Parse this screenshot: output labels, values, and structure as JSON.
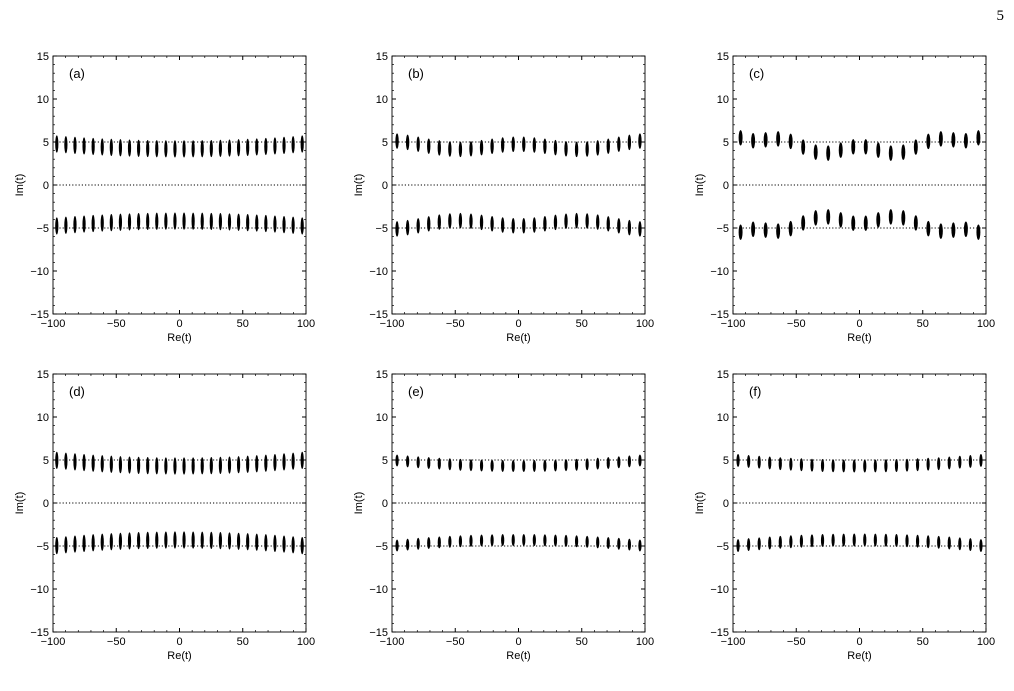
{
  "page": {
    "page_number": "5"
  },
  "chart_data": [
    {
      "type": "scatter",
      "panel_label": "(a)",
      "xlabel": "Re(t)",
      "ylabel": "Im(t)",
      "xlim": [
        -100,
        100
      ],
      "ylim": [
        -15,
        15
      ],
      "x_ticks": [
        -100,
        -50,
        0,
        50,
        100
      ],
      "y_ticks": [
        -15,
        -10,
        -5,
        0,
        5,
        10,
        15
      ],
      "reference_lines": [
        -5,
        0,
        5
      ],
      "clusters": {
        "count": 28,
        "x_start": -97,
        "x_end": 97,
        "center_y_edge": 4.8,
        "center_y_middle": 4.2,
        "half_height": 1.0,
        "width": 2.0
      }
    },
    {
      "type": "scatter",
      "panel_label": "(b)",
      "xlabel": "Re(t)",
      "ylabel": "Im(t)",
      "xlim": [
        -100,
        100
      ],
      "ylim": [
        -15,
        15
      ],
      "x_ticks": [
        -100,
        -50,
        0,
        50,
        100
      ],
      "y_ticks": [
        -15,
        -10,
        -5,
        0,
        5,
        10,
        15
      ],
      "reference_lines": [
        -5,
        0,
        5
      ],
      "clusters": {
        "count": 24,
        "x_start": -96,
        "x_end": 96,
        "center_y_edge": 4.8,
        "center_y_middle": 4.4,
        "wave_amplitude": 0.35,
        "wave_period": 100,
        "half_height": 0.9,
        "width": 2.2
      }
    },
    {
      "type": "scatter",
      "panel_label": "(c)",
      "xlabel": "Re(t)",
      "ylabel": "Im(t)",
      "xlim": [
        -100,
        100
      ],
      "ylim": [
        -15,
        15
      ],
      "x_ticks": [
        -100,
        -50,
        0,
        50,
        100
      ],
      "y_ticks": [
        -15,
        -10,
        -5,
        0,
        5,
        10,
        15
      ],
      "reference_lines": [
        -5,
        0,
        5
      ],
      "clusters": {
        "count": 20,
        "x_start": -94,
        "x_end": 94,
        "center_y_edge": 6.2,
        "center_y_middle": 4.0,
        "wave_amplitude": 0.5,
        "wave_period": 60,
        "half_height": 0.9,
        "width": 2.6
      }
    },
    {
      "type": "scatter",
      "panel_label": "(d)",
      "xlabel": "Re(t)",
      "ylabel": "Im(t)",
      "xlim": [
        -100,
        100
      ],
      "ylim": [
        -15,
        15
      ],
      "x_ticks": [
        -100,
        -50,
        0,
        50,
        100
      ],
      "y_ticks": [
        -15,
        -10,
        -5,
        0,
        5,
        10,
        15
      ],
      "reference_lines": [
        -5,
        0,
        5
      ],
      "clusters": {
        "count": 28,
        "x_start": -97,
        "x_end": 97,
        "center_y_edge": 5.0,
        "center_y_middle": 4.3,
        "half_height": 1.0,
        "width": 2.0
      }
    },
    {
      "type": "scatter",
      "panel_label": "(e)",
      "xlabel": "Re(t)",
      "ylabel": "Im(t)",
      "xlim": [
        -100,
        100
      ],
      "ylim": [
        -15,
        15
      ],
      "x_ticks": [
        -100,
        -50,
        0,
        50,
        100
      ],
      "y_ticks": [
        -15,
        -10,
        -5,
        0,
        5,
        10,
        15
      ],
      "reference_lines": [
        -5,
        0,
        5
      ],
      "clusters": {
        "count": 24,
        "x_start": -96,
        "x_end": 96,
        "center_y_edge": 5.0,
        "center_y_middle": 4.3,
        "half_height": 0.7,
        "width": 1.8
      }
    },
    {
      "type": "scatter",
      "panel_label": "(f)",
      "xlabel": "Re(t)",
      "ylabel": "Im(t)",
      "xlim": [
        -100,
        100
      ],
      "ylim": [
        -15,
        15
      ],
      "x_ticks": [
        -100,
        -50,
        0,
        50,
        100
      ],
      "y_ticks": [
        -15,
        -10,
        -5,
        0,
        5,
        10,
        15
      ],
      "reference_lines": [
        -5,
        0,
        5
      ],
      "clusters": {
        "count": 24,
        "x_start": -96,
        "x_end": 96,
        "center_y_edge": 5.0,
        "center_y_middle": 4.3,
        "half_height": 0.75,
        "width": 2.0
      }
    }
  ]
}
